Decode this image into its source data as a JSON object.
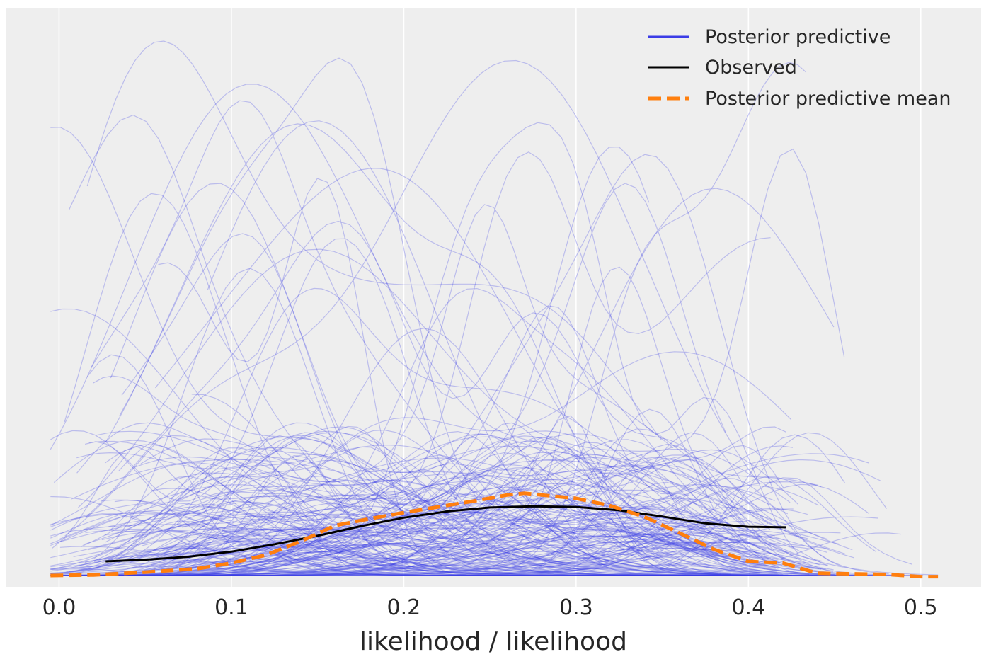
{
  "chart_data": {
    "type": "line",
    "title": "",
    "xlabel": "likelihood / likelihood",
    "ylabel": "",
    "xlim": [
      -0.031,
      0.535
    ],
    "ylim": [
      -0.02,
      1.0
    ],
    "x_ticks": [
      0.0,
      0.1,
      0.2,
      0.3,
      0.4,
      0.5
    ],
    "x_tick_labels": [
      "0.0",
      "0.1",
      "0.2",
      "0.3",
      "0.4",
      "0.5"
    ],
    "y_ticks_visible": false,
    "grid": "vertical",
    "background": "#eeeeee",
    "legend": {
      "position": "top-right",
      "entries": [
        {
          "label": "Posterior predictive",
          "color": "#3b3ce6",
          "style": "solid"
        },
        {
          "label": "Observed",
          "color": "#000000",
          "style": "solid"
        },
        {
          "label": "Posterior predictive mean",
          "color": "#ff7f0e",
          "style": "dashed"
        }
      ]
    },
    "series": [
      {
        "name": "Observed",
        "color": "#000000",
        "style": "solid",
        "x": [
          0.027,
          0.05,
          0.075,
          0.1,
          0.125,
          0.15,
          0.175,
          0.2,
          0.225,
          0.25,
          0.275,
          0.3,
          0.325,
          0.35,
          0.375,
          0.4,
          0.422
        ],
        "y": [
          0.025,
          0.028,
          0.033,
          0.042,
          0.055,
          0.07,
          0.087,
          0.102,
          0.113,
          0.12,
          0.122,
          0.121,
          0.115,
          0.104,
          0.092,
          0.086,
          0.085
        ]
      },
      {
        "name": "Posterior predictive mean",
        "color": "#ff7f0e",
        "style": "dashed",
        "x": [
          -0.005,
          0.02,
          0.05,
          0.08,
          0.1,
          0.12,
          0.14,
          0.16,
          0.18,
          0.2,
          0.22,
          0.24,
          0.26,
          0.27,
          0.28,
          0.3,
          0.32,
          0.34,
          0.36,
          0.38,
          0.4,
          0.42,
          0.44,
          0.46,
          0.48,
          0.5,
          0.51
        ],
        "y": [
          0.0,
          0.001,
          0.006,
          0.012,
          0.022,
          0.036,
          0.06,
          0.088,
          0.1,
          0.111,
          0.121,
          0.131,
          0.142,
          0.145,
          0.142,
          0.136,
          0.123,
          0.103,
          0.075,
          0.046,
          0.025,
          0.022,
          0.004,
          0.003,
          0.002,
          -0.002,
          -0.002
        ]
      }
    ],
    "posterior_predictive": {
      "name": "Posterior predictive",
      "color": "#3b3ce6",
      "count": 200,
      "peak_max": 1.0,
      "x_range": [
        -0.005,
        0.51
      ]
    }
  }
}
